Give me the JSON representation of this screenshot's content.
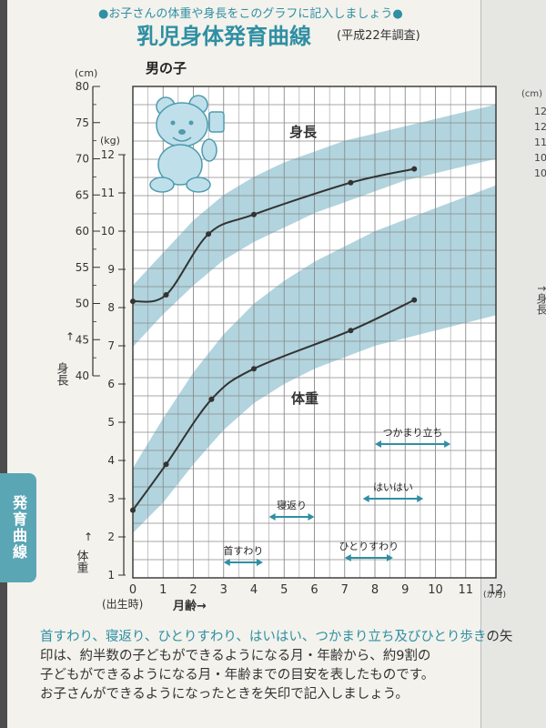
{
  "header": {
    "instruction": "●お子さんの体重や身長をこのグラフに記入しましょう●",
    "title": "乳児身体発育曲線",
    "subtitle": "(平成22年調査)"
  },
  "side_tab": {
    "label": "発育曲線"
  },
  "colors": {
    "accent": "#2f8fa3",
    "band": "#9ec9d6",
    "curve": "#333333",
    "grid": "#8a8a8a"
  },
  "chart_data": {
    "type": "line",
    "panel_label": "男の子",
    "x": {
      "label": "月齢→",
      "unit": "(か月)",
      "birth_label": "(出生時)",
      "ticks": [
        "0",
        "1",
        "2",
        "3",
        "4",
        "5",
        "6",
        "7",
        "8",
        "9",
        "10",
        "11",
        "12"
      ],
      "range": [
        0,
        12
      ]
    },
    "height_axis": {
      "unit": "(cm)",
      "label": "身長",
      "arrow": "↑",
      "ticks": [
        "40",
        "45",
        "50",
        "55",
        "60",
        "65",
        "70",
        "75",
        "80"
      ],
      "range": [
        40,
        80
      ]
    },
    "weight_axis": {
      "unit": "(kg)",
      "label": "体重",
      "arrow": "↑",
      "ticks": [
        "1",
        "2",
        "3",
        "4",
        "5",
        "6",
        "7",
        "8",
        "9",
        "10",
        "11",
        "12"
      ],
      "range": [
        1,
        12
      ]
    },
    "series": [
      {
        "name": "身長",
        "axis": "height",
        "band_lower": [
          [
            0,
            44.0
          ],
          [
            1,
            48.5
          ],
          [
            2,
            52.5
          ],
          [
            3,
            56.0
          ],
          [
            4,
            58.5
          ],
          [
            5,
            60.5
          ],
          [
            6,
            62.5
          ],
          [
            7,
            64.0
          ],
          [
            8,
            65.5
          ],
          [
            9,
            67.0
          ],
          [
            10,
            68.0
          ],
          [
            11,
            69.0
          ],
          [
            12,
            70.0
          ]
        ],
        "band_upper": [
          [
            0,
            52.5
          ],
          [
            1,
            57.0
          ],
          [
            2,
            61.5
          ],
          [
            3,
            65.0
          ],
          [
            4,
            67.5
          ],
          [
            5,
            69.5
          ],
          [
            6,
            71.0
          ],
          [
            7,
            72.5
          ],
          [
            8,
            73.5
          ],
          [
            9,
            74.5
          ],
          [
            10,
            75.5
          ],
          [
            11,
            76.5
          ],
          [
            12,
            77.5
          ]
        ],
        "recorded": [
          [
            0,
            50.3
          ],
          [
            1.1,
            51.2
          ],
          [
            2.5,
            59.6
          ],
          [
            4,
            62.3
          ],
          [
            7.2,
            66.7
          ],
          [
            9.3,
            68.6
          ]
        ]
      },
      {
        "name": "体重",
        "axis": "weight",
        "band_lower": [
          [
            0,
            2.1
          ],
          [
            1,
            2.9
          ],
          [
            2,
            3.9
          ],
          [
            3,
            4.8
          ],
          [
            4,
            5.5
          ],
          [
            5,
            6.0
          ],
          [
            6,
            6.4
          ],
          [
            7,
            6.7
          ],
          [
            8,
            7.0
          ],
          [
            9,
            7.2
          ],
          [
            10,
            7.4
          ],
          [
            11,
            7.6
          ],
          [
            12,
            7.8
          ]
        ],
        "band_upper": [
          [
            0,
            3.8
          ],
          [
            1,
            5.1
          ],
          [
            2,
            6.3
          ],
          [
            3,
            7.3
          ],
          [
            4,
            8.1
          ],
          [
            5,
            8.7
          ],
          [
            6,
            9.2
          ],
          [
            7,
            9.6
          ],
          [
            8,
            10.0
          ],
          [
            9,
            10.3
          ],
          [
            10,
            10.6
          ],
          [
            11,
            10.9
          ],
          [
            12,
            11.2
          ]
        ],
        "recorded": [
          [
            0,
            2.7
          ],
          [
            1.1,
            3.9
          ],
          [
            2.6,
            5.6
          ],
          [
            4,
            6.4
          ],
          [
            7.2,
            7.4
          ],
          [
            9.3,
            8.2
          ]
        ]
      }
    ],
    "milestones": [
      {
        "label": "首すわり",
        "range": [
          3,
          4.3
        ]
      },
      {
        "label": "寝返り",
        "range": [
          4.5,
          6
        ]
      },
      {
        "label": "ひとりすわり",
        "range": [
          7,
          8.6
        ]
      },
      {
        "label": "はいはい",
        "range": [
          7.6,
          9.6
        ]
      },
      {
        "label": "つかまり立ち",
        "range": [
          8,
          10.5
        ]
      }
    ]
  },
  "caption": {
    "milestone_list": "首すわり、寝返り、ひとりすわり、はいはい、つかまり立ち及びひとり歩き",
    "text_1": "の矢印は、約半数の子どもができるようになる月・年齢から、約9割の",
    "text_2": "子どもができるようになる月・年齢までの目安を表したものです。",
    "text_3": "お子さんができるようになったときを矢印で記入しましょう。"
  },
  "next_page": {
    "unit": "(cm)",
    "ticks": [
      "12",
      "12",
      "11",
      "10",
      "10"
    ],
    "label": "↑身長"
  }
}
